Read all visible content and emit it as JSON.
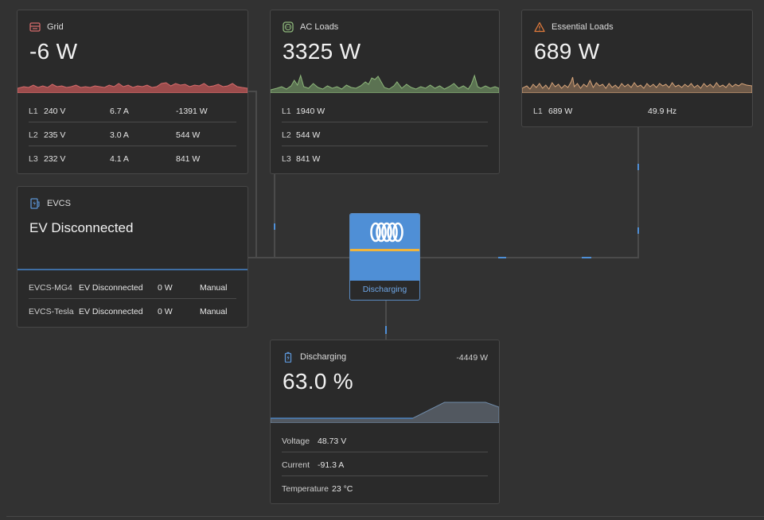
{
  "colors": {
    "background": "#323232",
    "card": "#2a2a2a",
    "grid_accent": "#d46b6b",
    "ac_loads_accent": "#8db77a",
    "essential_accent": "#d8a57a",
    "flow_blue": "#4f8fd6",
    "inverter_line": "#f0b43c"
  },
  "grid": {
    "title": "Grid",
    "icon": "grid-meter-icon",
    "power": "-6 W",
    "rows": [
      {
        "phase": "L1",
        "voltage": "240 V",
        "current": "6.7 A",
        "power": "-1391 W"
      },
      {
        "phase": "L2",
        "voltage": "235 V",
        "current": "3.0 A",
        "power": "544 W"
      },
      {
        "phase": "L3",
        "voltage": "232 V",
        "current": "4.1 A",
        "power": "841 W"
      }
    ]
  },
  "ac_loads": {
    "title": "AC Loads",
    "icon": "plug-socket-icon",
    "power": "3325 W",
    "rows": [
      {
        "phase": "L1",
        "power": "1940 W"
      },
      {
        "phase": "L2",
        "power": "544 W"
      },
      {
        "phase": "L3",
        "power": "841 W"
      }
    ]
  },
  "essential_loads": {
    "title": "Essential Loads",
    "icon": "warning-triangle-icon",
    "power": "689 W",
    "rows": [
      {
        "phase": "L1",
        "power": "689 W",
        "frequency": "49.9 Hz"
      }
    ]
  },
  "evcs": {
    "title": "EVCS",
    "icon": "ev-charger-icon",
    "status": "EV Disconnected",
    "rows": [
      {
        "name": "EVCS-MG4",
        "status": "EV Disconnected",
        "power": "0 W",
        "mode": "Manual"
      },
      {
        "name": "EVCS-Tesla",
        "status": "EV Disconnected",
        "power": "0 W",
        "mode": "Manual"
      }
    ]
  },
  "inverter": {
    "icon": "victron-logo-icon",
    "status": "Discharging"
  },
  "battery": {
    "icon": "battery-icon",
    "title": "Discharging",
    "power": "-4449 W",
    "soc": "63.0 %",
    "rows": [
      {
        "label": "Voltage",
        "value": "48.73 V"
      },
      {
        "label": "Current",
        "value": "-91.3 A"
      },
      {
        "label": "Temperature",
        "value": "23 °C"
      }
    ]
  }
}
